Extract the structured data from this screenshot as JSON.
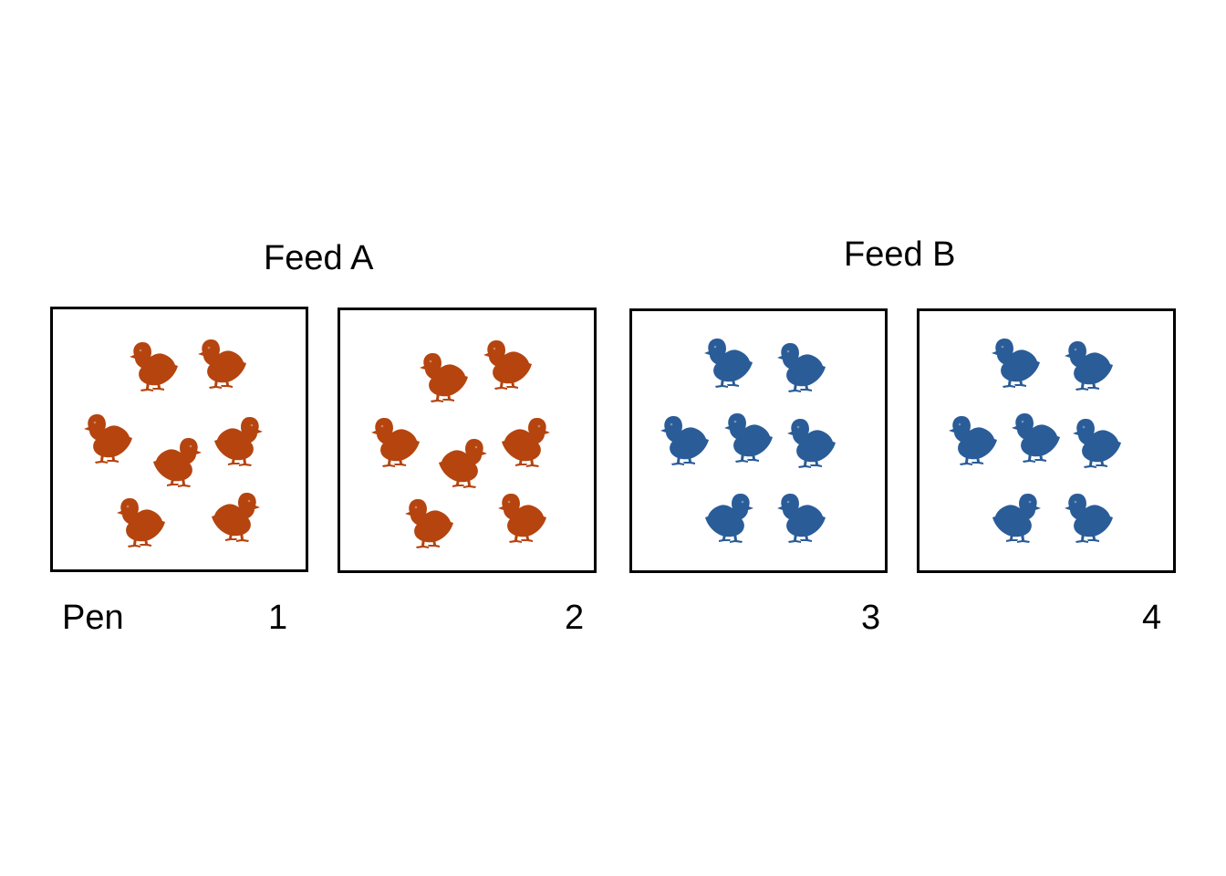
{
  "groups": [
    {
      "label": "Feed A",
      "color": "#B5440F"
    },
    {
      "label": "Feed B",
      "color": "#2A5C98"
    }
  ],
  "pen_word": "Pen",
  "pens": [
    {
      "number": "1",
      "group": 0,
      "chicks": 7
    },
    {
      "number": "2",
      "group": 0,
      "chicks": 7
    },
    {
      "number": "3",
      "group": 1,
      "chicks": 7
    },
    {
      "number": "4",
      "group": 1,
      "chicks": 7
    }
  ]
}
